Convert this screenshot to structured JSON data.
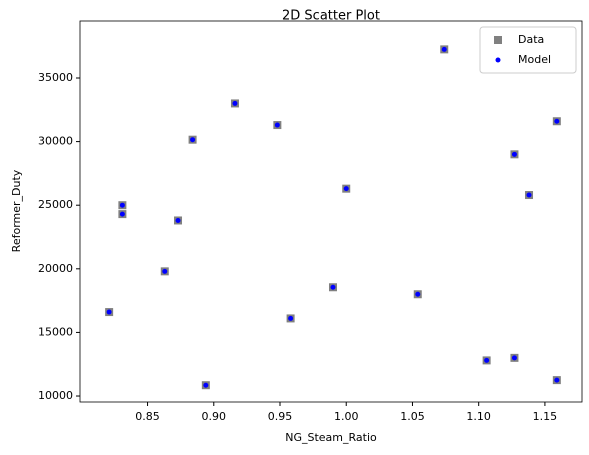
{
  "chart_data": {
    "type": "scatter",
    "title": "2D Scatter Plot",
    "x_label": "NG_Steam_Ratio",
    "y_label": "Reformer_Duty",
    "xlim": [
      0.799,
      1.178
    ],
    "ylim": [
      9530,
      39480
    ],
    "xticks": [
      0.85,
      {
        "value": 0.9,
        "label": "0.90"
      },
      0.95,
      {
        "value": 1.0,
        "label": "1.00"
      },
      1.05,
      {
        "value": 1.1,
        "label": "1.10"
      },
      1.15
    ],
    "yticks": [
      10000,
      15000,
      20000,
      25000,
      30000,
      35000
    ],
    "grid": false,
    "legend": "upper right",
    "series": [
      {
        "name": "Data",
        "color": "#808080",
        "marker": "square",
        "x": [
          0.821,
          0.831,
          0.831,
          0.863,
          0.873,
          0.884,
          0.894,
          0.916,
          0.948,
          0.958,
          0.99,
          1.0,
          1.054,
          1.074,
          1.106,
          1.127,
          1.127,
          1.138,
          1.159,
          1.159
        ],
        "y": [
          16600,
          25000,
          24300,
          19800,
          23800,
          30150,
          10850,
          33000,
          31300,
          16100,
          18550,
          26300,
          18000,
          37250,
          12800,
          13000,
          29000,
          25800,
          31600,
          11250
        ]
      },
      {
        "name": "Model",
        "color": "#0000ff",
        "marker": "circle",
        "x": [
          0.821,
          0.831,
          0.831,
          0.863,
          0.873,
          0.884,
          0.894,
          0.916,
          0.948,
          0.958,
          0.99,
          1.0,
          1.054,
          1.074,
          1.106,
          1.127,
          1.127,
          1.138,
          1.159,
          1.159
        ],
        "y": [
          16600,
          25000,
          24300,
          19800,
          23800,
          30150,
          10850,
          33000,
          31300,
          16100,
          18550,
          26300,
          18000,
          37250,
          12800,
          13000,
          29000,
          25800,
          31600,
          11250
        ]
      }
    ]
  }
}
